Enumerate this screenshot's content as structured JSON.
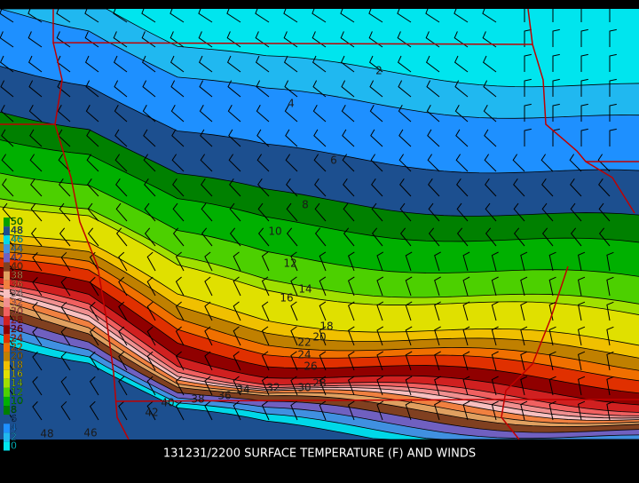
{
  "map": {
    "caption": "131231/2200 SURFACE TEMPERATURE (F) AND WINDS",
    "contour_labels": [
      2,
      4,
      6,
      8,
      10,
      12,
      14,
      16,
      18,
      20,
      22,
      24,
      26,
      28,
      30,
      32,
      34,
      36,
      38,
      40,
      42,
      46,
      48
    ],
    "legend": [
      {
        "value": 50,
        "color": "#00a000"
      },
      {
        "value": 48,
        "color": "#1c4f8f"
      },
      {
        "value": 46,
        "color": "#00d8e8"
      },
      {
        "value": 44,
        "color": "#4090e0"
      },
      {
        "value": 42,
        "color": "#7060c0"
      },
      {
        "value": 40,
        "color": "#804020"
      },
      {
        "value": 38,
        "color": "#e0a060"
      },
      {
        "value": 36,
        "color": "#f08040"
      },
      {
        "value": 34,
        "color": "#f8c0c0"
      },
      {
        "value": 32,
        "color": "#f09090"
      },
      {
        "value": 30,
        "color": "#f06060"
      },
      {
        "value": 28,
        "color": "#d02020"
      },
      {
        "value": 26,
        "color": "#900000"
      },
      {
        "value": 24,
        "color": "#e03000"
      },
      {
        "value": 22,
        "color": "#f07000"
      },
      {
        "value": 20,
        "color": "#c08000"
      },
      {
        "value": 18,
        "color": "#f0c000"
      },
      {
        "value": 16,
        "color": "#e0e000"
      },
      {
        "value": 14,
        "color": "#a0e000"
      },
      {
        "value": 12,
        "color": "#4cd000"
      },
      {
        "value": 10,
        "color": "#00b000"
      },
      {
        "value": 8,
        "color": "#008000"
      },
      {
        "value": 6,
        "color": "#1c4f8f"
      },
      {
        "value": 4,
        "color": "#1e90ff"
      },
      {
        "value": 2,
        "color": "#20b8f0"
      },
      {
        "value": 0,
        "color": "#00e5ee"
      }
    ]
  }
}
